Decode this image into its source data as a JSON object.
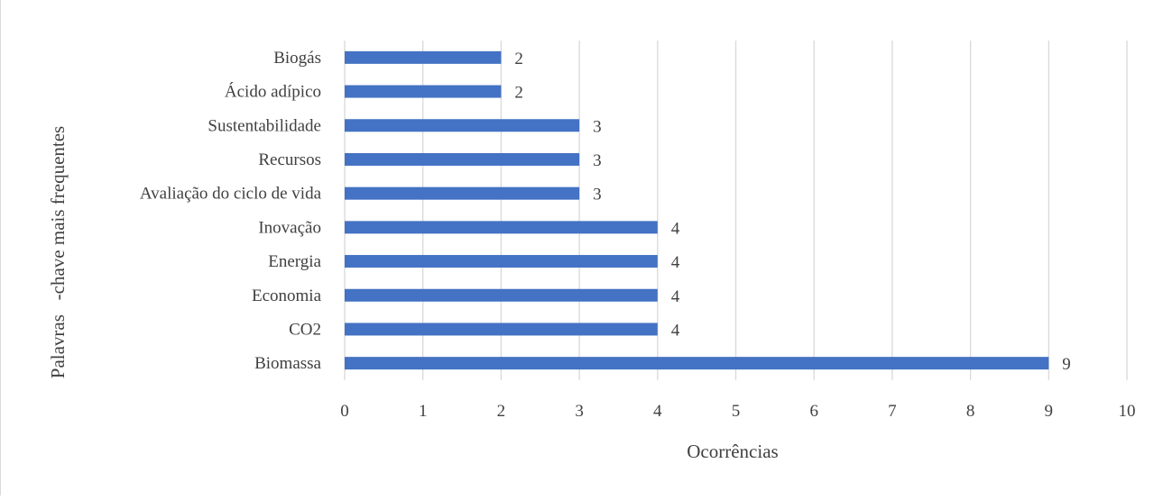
{
  "chart_data": {
    "type": "bar",
    "orientation": "horizontal",
    "categories": [
      "Biogás",
      "Ácido adípico",
      "Sustentabilidade",
      "Recursos",
      "Avaliação do ciclo de vida",
      "Inovação",
      "Energia",
      "Economia",
      "CO2",
      "Biomassa"
    ],
    "values": [
      2,
      2,
      3,
      3,
      3,
      4,
      4,
      4,
      4,
      9
    ],
    "xticks": [
      "0",
      "1",
      "2",
      "3",
      "4",
      "5",
      "6",
      "7",
      "8",
      "9",
      "10"
    ],
    "xlim": [
      0,
      10
    ],
    "xlabel": "Ocorrências",
    "ylabel": "Palavras   -chave mais frequentes",
    "title": "",
    "grid": "vertical",
    "legend": "none",
    "bar_color": "#4472c4",
    "grid_color": "#d9d9d9",
    "text_color": "#404040",
    "data_labels": true
  }
}
